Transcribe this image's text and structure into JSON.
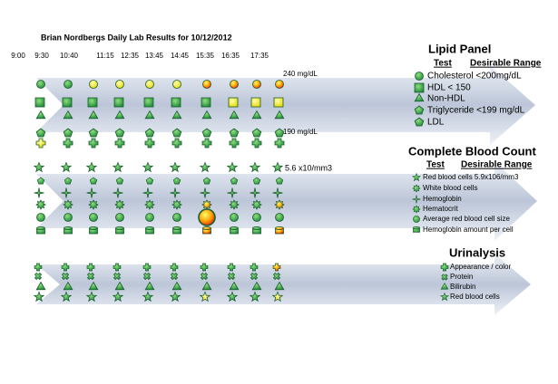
{
  "title": "Brian Nordbergs Daily Lab Results for 10/12/2012",
  "times": [
    "9:00",
    "9:30",
    "10:40",
    "11:15",
    "12:35",
    "13:45",
    "14:45",
    "15:35",
    "16:35",
    "17:35"
  ],
  "annotations": [
    "240 mg/dL",
    "190 mg/dL",
    "5.6 x10/mm3"
  ],
  "lipid_panel": {
    "title": "Lipid Panel",
    "header": [
      "Test",
      "Desirable Range"
    ],
    "items": [
      "Cholesterol <200mg/dL",
      "HDL < 150",
      "Non-HDL",
      "Triglyceride  <199 mg/dL",
      "LDL"
    ]
  },
  "complete_blood_count": {
    "title": "Complete Blood Count",
    "header": [
      "Test",
      "Desirable Range"
    ],
    "items": [
      "Red blood cells 5.9x106/mm3",
      "White blood cells",
      "Hemoglobin",
      "Hematocrit",
      "Average red blood cell size",
      "Hemoglobin amount per cell"
    ]
  },
  "urinalysis": {
    "title": "Urinalysis",
    "items": [
      "Appearance / color",
      "Protein",
      "Bilirubin",
      "Red blood cells"
    ]
  }
}
